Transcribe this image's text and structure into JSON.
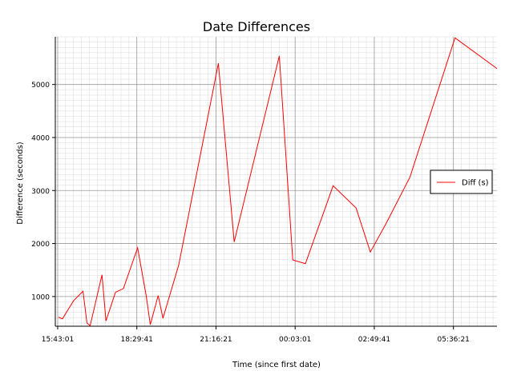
{
  "chart_data": {
    "type": "line",
    "title": "Date Differences",
    "xlabel": "Time (since first date)",
    "ylabel": "Difference (seconds)",
    "x_tick_labels": [
      "15:43:01",
      "18:29:41",
      "21:16:21",
      "00:03:01",
      "02:49:41",
      "05:36:21"
    ],
    "x_tick_values": [
      0,
      10000,
      20000,
      30000,
      40000,
      50000
    ],
    "xlim": [
      -300,
      55500
    ],
    "y_ticks": [
      1000,
      2000,
      3000,
      4000,
      5000
    ],
    "ylim": [
      440,
      5900
    ],
    "grid": true,
    "minor_grid": true,
    "legend_position": "right",
    "series": [
      {
        "name": "Diff (s)",
        "color": "#ff0000",
        "points": [
          [
            100,
            610
          ],
          [
            600,
            580
          ],
          [
            2000,
            920
          ],
          [
            3200,
            1100
          ],
          [
            3700,
            500
          ],
          [
            4100,
            450
          ],
          [
            5600,
            1410
          ],
          [
            6100,
            540
          ],
          [
            7300,
            1080
          ],
          [
            8300,
            1150
          ],
          [
            10100,
            1920
          ],
          [
            11200,
            1000
          ],
          [
            11700,
            470
          ],
          [
            12700,
            1020
          ],
          [
            13300,
            590
          ],
          [
            15300,
            1600
          ],
          [
            20300,
            5400
          ],
          [
            22300,
            2030
          ],
          [
            28000,
            5540
          ],
          [
            29700,
            1690
          ],
          [
            31300,
            1620
          ],
          [
            34800,
            3090
          ],
          [
            37700,
            2670
          ],
          [
            39500,
            1840
          ],
          [
            41500,
            2380
          ],
          [
            44500,
            3250
          ],
          [
            50200,
            5880
          ],
          [
            55500,
            5300
          ]
        ]
      }
    ]
  }
}
